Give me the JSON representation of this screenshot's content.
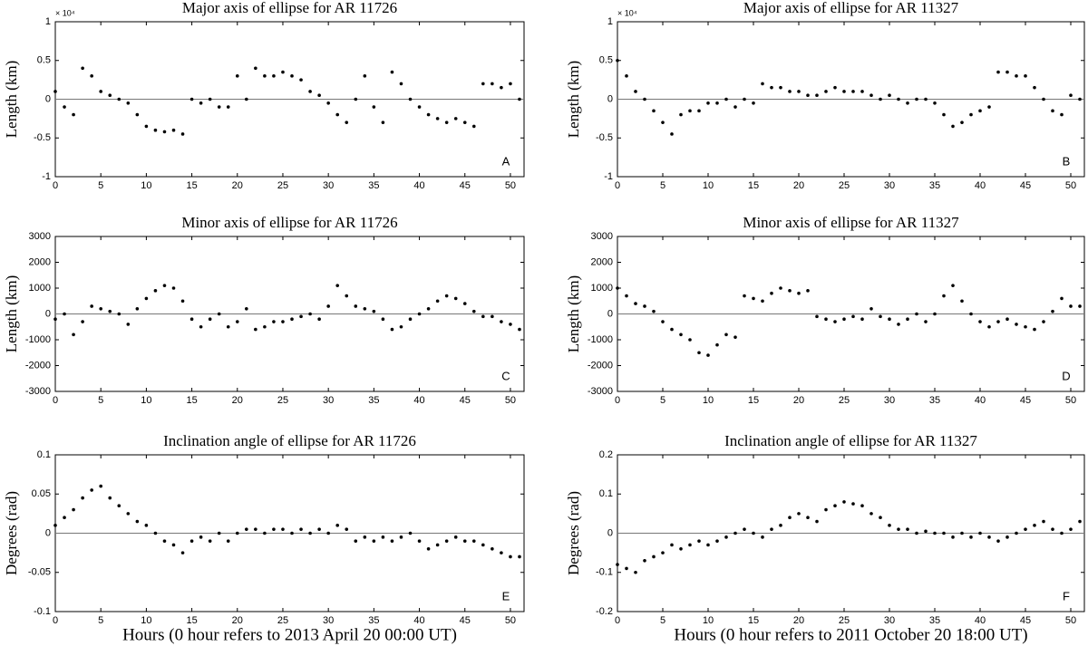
{
  "chart_data": [
    {
      "type": "scatter",
      "title": "Major axis of ellipse for AR 11726",
      "ylabel": "Length (km)",
      "multiplier": "× 10⁴",
      "panel_label": "A",
      "color": "#000000",
      "reference_line": 0,
      "xlim": [
        0,
        51.5
      ],
      "xticks": [
        0,
        5,
        10,
        15,
        20,
        25,
        30,
        35,
        40,
        45,
        50
      ],
      "ylim": [
        -1,
        1
      ],
      "yticks": [
        -1,
        -0.5,
        0,
        0.5,
        1
      ],
      "x": [
        0,
        1,
        2,
        3,
        4,
        5,
        6,
        7,
        8,
        9,
        10,
        11,
        12,
        13,
        14,
        15,
        16,
        17,
        18,
        19,
        20,
        21,
        22,
        23,
        24,
        25,
        26,
        27,
        28,
        29,
        30,
        31,
        32,
        33,
        34,
        35,
        36,
        37,
        38,
        39,
        40,
        41,
        42,
        43,
        44,
        45,
        46,
        47,
        48,
        49,
        50,
        51
      ],
      "values": [
        0.1,
        -0.1,
        -0.2,
        0.4,
        0.3,
        0.1,
        0.05,
        0.0,
        -0.05,
        -0.2,
        -0.35,
        -0.4,
        -0.42,
        -0.4,
        -0.45,
        0.0,
        -0.05,
        0.0,
        -0.1,
        -0.1,
        0.3,
        0.0,
        0.4,
        0.3,
        0.3,
        0.35,
        0.3,
        0.25,
        0.1,
        0.05,
        -0.05,
        -0.2,
        -0.3,
        0.0,
        0.3,
        -0.1,
        -0.3,
        0.35,
        0.2,
        0.0,
        -0.1,
        -0.2,
        -0.25,
        -0.3,
        -0.25,
        -0.3,
        -0.35,
        0.2,
        0.2,
        0.15,
        0.2,
        0.0
      ]
    },
    {
      "type": "scatter",
      "title": "Major axis of ellipse for AR 11327",
      "ylabel": "Length (km)",
      "multiplier": "× 10⁴",
      "panel_label": "B",
      "color": "#000000",
      "reference_line": 0,
      "xlim": [
        0,
        51.5
      ],
      "xticks": [
        0,
        5,
        10,
        15,
        20,
        25,
        30,
        35,
        40,
        45,
        50
      ],
      "ylim": [
        -1,
        1
      ],
      "yticks": [
        -1,
        -0.5,
        0,
        0.5,
        1
      ],
      "x": [
        0,
        1,
        2,
        3,
        4,
        5,
        6,
        7,
        8,
        9,
        10,
        11,
        12,
        13,
        14,
        15,
        16,
        17,
        18,
        19,
        20,
        21,
        22,
        23,
        24,
        25,
        26,
        27,
        28,
        29,
        30,
        31,
        32,
        33,
        34,
        35,
        36,
        37,
        38,
        39,
        40,
        41,
        42,
        43,
        44,
        45,
        46,
        47,
        48,
        49,
        50,
        51
      ],
      "values": [
        0.5,
        0.3,
        0.1,
        0.0,
        -0.15,
        -0.3,
        -0.45,
        -0.2,
        -0.15,
        -0.15,
        -0.05,
        -0.05,
        0.0,
        -0.1,
        0.0,
        -0.05,
        0.2,
        0.15,
        0.15,
        0.1,
        0.1,
        0.05,
        0.05,
        0.1,
        0.15,
        0.1,
        0.1,
        0.1,
        0.05,
        0.0,
        0.05,
        0.0,
        -0.05,
        0.0,
        0.0,
        -0.05,
        -0.2,
        -0.35,
        -0.3,
        -0.2,
        -0.15,
        -0.1,
        0.35,
        0.35,
        0.3,
        0.3,
        0.15,
        0.0,
        -0.15,
        -0.2,
        0.05,
        0.0
      ]
    },
    {
      "type": "scatter",
      "title": "Minor axis of ellipse for AR 11726",
      "ylabel": "Length (km)",
      "panel_label": "C",
      "color": "#000000",
      "reference_line": 0,
      "xlim": [
        0,
        51.5
      ],
      "xticks": [
        0,
        5,
        10,
        15,
        20,
        25,
        30,
        35,
        40,
        45,
        50
      ],
      "ylim": [
        -3000,
        3000
      ],
      "yticks": [
        -3000,
        -2000,
        -1000,
        0,
        1000,
        2000,
        3000
      ],
      "x": [
        0,
        1,
        2,
        3,
        4,
        5,
        6,
        7,
        8,
        9,
        10,
        11,
        12,
        13,
        14,
        15,
        16,
        17,
        18,
        19,
        20,
        21,
        22,
        23,
        24,
        25,
        26,
        27,
        28,
        29,
        30,
        31,
        32,
        33,
        34,
        35,
        36,
        37,
        38,
        39,
        40,
        41,
        42,
        43,
        44,
        45,
        46,
        47,
        48,
        49,
        50,
        51
      ],
      "values": [
        -200,
        0,
        -800,
        -300,
        300,
        200,
        100,
        0,
        -400,
        200,
        600,
        900,
        1100,
        1000,
        500,
        -200,
        -500,
        -200,
        0,
        -500,
        -300,
        200,
        -600,
        -500,
        -300,
        -300,
        -200,
        -100,
        0,
        -200,
        300,
        1100,
        700,
        300,
        200,
        100,
        -200,
        -600,
        -500,
        -200,
        0,
        200,
        500,
        700,
        600,
        400,
        100,
        -100,
        -100,
        -300,
        -400,
        -600
      ]
    },
    {
      "type": "scatter",
      "title": "Minor axis of ellipse for AR 11327",
      "ylabel": "Length (km)",
      "panel_label": "D",
      "color": "#000000",
      "reference_line": 0,
      "xlim": [
        0,
        51.5
      ],
      "xticks": [
        0,
        5,
        10,
        15,
        20,
        25,
        30,
        35,
        40,
        45,
        50
      ],
      "ylim": [
        -3000,
        3000
      ],
      "yticks": [
        -3000,
        -2000,
        -1000,
        0,
        1000,
        2000,
        3000
      ],
      "x": [
        0,
        1,
        2,
        3,
        4,
        5,
        6,
        7,
        8,
        9,
        10,
        11,
        12,
        13,
        14,
        15,
        16,
        17,
        18,
        19,
        20,
        21,
        22,
        23,
        24,
        25,
        26,
        27,
        28,
        29,
        30,
        31,
        32,
        33,
        34,
        35,
        36,
        37,
        38,
        39,
        40,
        41,
        42,
        43,
        44,
        45,
        46,
        47,
        48,
        49,
        50,
        51
      ],
      "values": [
        1000,
        700,
        400,
        300,
        100,
        -300,
        -600,
        -800,
        -1000,
        -1500,
        -1600,
        -1200,
        -800,
        -900,
        700,
        600,
        500,
        800,
        1000,
        900,
        800,
        900,
        -100,
        -200,
        -300,
        -200,
        -100,
        -200,
        200,
        -100,
        -200,
        -400,
        -200,
        0,
        -300,
        0,
        700,
        1100,
        500,
        0,
        -300,
        -500,
        -300,
        -200,
        -400,
        -500,
        -600,
        -300,
        100,
        600,
        300,
        300
      ]
    },
    {
      "type": "scatter",
      "title": "Inclination angle of ellipse for AR 11726",
      "ylabel": "Degrees (rad)",
      "xlabel": "Hours (0 hour refers to 2013 April 20 00:00 UT)",
      "panel_label": "E",
      "color": "#000000",
      "reference_line": 0,
      "xlim": [
        0,
        51.5
      ],
      "xticks": [
        0,
        5,
        10,
        15,
        20,
        25,
        30,
        35,
        40,
        45,
        50
      ],
      "ylim": [
        -0.1,
        0.1
      ],
      "yticks": [
        -0.1,
        -0.05,
        0,
        0.05,
        0.1
      ],
      "x": [
        0,
        1,
        2,
        3,
        4,
        5,
        6,
        7,
        8,
        9,
        10,
        11,
        12,
        13,
        14,
        15,
        16,
        17,
        18,
        19,
        20,
        21,
        22,
        23,
        24,
        25,
        26,
        27,
        28,
        29,
        30,
        31,
        32,
        33,
        34,
        35,
        36,
        37,
        38,
        39,
        40,
        41,
        42,
        43,
        44,
        45,
        46,
        47,
        48,
        49,
        50,
        51
      ],
      "values": [
        0.01,
        0.02,
        0.03,
        0.045,
        0.055,
        0.06,
        0.045,
        0.035,
        0.025,
        0.015,
        0.01,
        0.0,
        -0.01,
        -0.015,
        -0.025,
        -0.01,
        -0.005,
        -0.01,
        0.0,
        -0.01,
        0.0,
        0.005,
        0.005,
        0.0,
        0.005,
        0.005,
        0.0,
        0.005,
        0.0,
        0.005,
        0.0,
        0.01,
        0.005,
        -0.01,
        -0.005,
        -0.01,
        -0.005,
        -0.01,
        -0.005,
        0.0,
        -0.01,
        -0.02,
        -0.015,
        -0.01,
        -0.005,
        -0.01,
        -0.01,
        -0.015,
        -0.02,
        -0.025,
        -0.03,
        -0.03
      ]
    },
    {
      "type": "scatter",
      "title": "Inclination angle of ellipse for AR 11327",
      "ylabel": "Degrees (rad)",
      "xlabel": "Hours (0 hour refers to 2011 October 20 18:00 UT)",
      "panel_label": "F",
      "color": "#000000",
      "reference_line": 0,
      "xlim": [
        0,
        51.5
      ],
      "xticks": [
        0,
        5,
        10,
        15,
        20,
        25,
        30,
        35,
        40,
        45,
        50
      ],
      "ylim": [
        -0.2,
        0.2
      ],
      "yticks": [
        -0.2,
        -0.1,
        0,
        0.1,
        0.2
      ],
      "x": [
        0,
        1,
        2,
        3,
        4,
        5,
        6,
        7,
        8,
        9,
        10,
        11,
        12,
        13,
        14,
        15,
        16,
        17,
        18,
        19,
        20,
        21,
        22,
        23,
        24,
        25,
        26,
        27,
        28,
        29,
        30,
        31,
        32,
        33,
        34,
        35,
        36,
        37,
        38,
        39,
        40,
        41,
        42,
        43,
        44,
        45,
        46,
        47,
        48,
        49,
        50,
        51
      ],
      "values": [
        -0.08,
        -0.09,
        -0.1,
        -0.07,
        -0.06,
        -0.05,
        -0.03,
        -0.04,
        -0.03,
        -0.02,
        -0.03,
        -0.02,
        -0.01,
        0.0,
        0.01,
        0.0,
        -0.01,
        0.01,
        0.02,
        0.04,
        0.05,
        0.04,
        0.03,
        0.06,
        0.07,
        0.08,
        0.075,
        0.07,
        0.05,
        0.04,
        0.02,
        0.01,
        0.01,
        0.0,
        0.005,
        0.0,
        0.0,
        -0.01,
        0.0,
        -0.01,
        0.0,
        -0.01,
        -0.02,
        -0.01,
        0.0,
        0.01,
        0.02,
        0.03,
        0.01,
        0.0,
        0.01,
        0.03
      ]
    }
  ]
}
